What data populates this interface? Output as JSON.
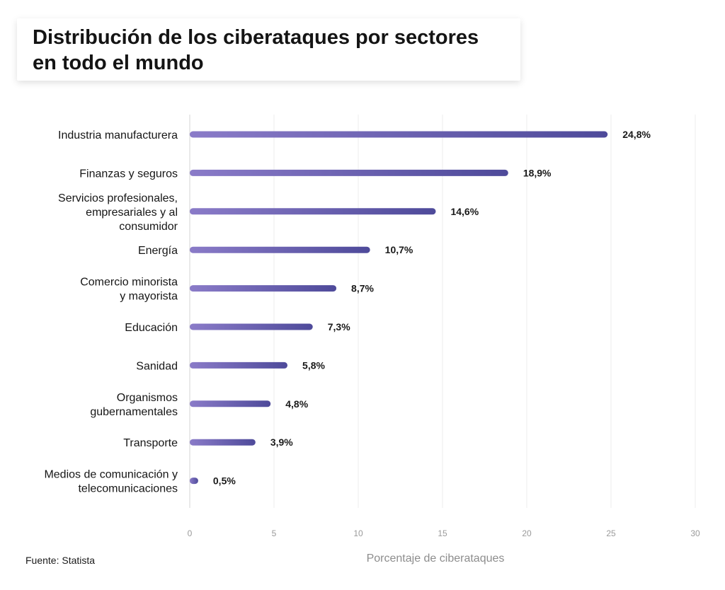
{
  "title": "Distribución de los ciberataques por sectores\nen todo el mundo",
  "source": "Fuente: Statista",
  "chart_data": {
    "type": "bar",
    "orientation": "horizontal",
    "title": "Distribución de los ciberataques por sectores en todo el mundo",
    "xlabel": "Porcentaje de ciberataques",
    "ylabel": "",
    "xlim": [
      0,
      30
    ],
    "xticks": [
      0,
      5,
      10,
      15,
      20,
      25,
      30
    ],
    "grid": true,
    "categories": [
      [
        "Industria manufacturera"
      ],
      [
        "Finanzas y seguros"
      ],
      [
        "Servicios profesionales,",
        "empresariales y al",
        "consumidor"
      ],
      [
        "Energía"
      ],
      [
        "Comercio minorista",
        "y mayorista"
      ],
      [
        "Educación"
      ],
      [
        "Sanidad"
      ],
      [
        "Organismos",
        "gubernamentales"
      ],
      [
        "Transporte"
      ],
      [
        "Medios de comunicación y",
        "telecomunicaciones"
      ]
    ],
    "values": [
      24.8,
      18.9,
      14.6,
      10.7,
      8.7,
      7.3,
      5.8,
      4.8,
      3.9,
      0.5
    ],
    "value_labels": [
      "24,8%",
      "18,9%",
      "14,6%",
      "10,7%",
      "8,7%",
      "7,3%",
      "5,8%",
      "4,8%",
      "3,9%",
      "0,5%"
    ],
    "colors": {
      "bar_start": "#8a7bc8",
      "bar_end": "#4e4a9a",
      "grid": "#ececec",
      "axis": "#d6d6d6"
    }
  }
}
